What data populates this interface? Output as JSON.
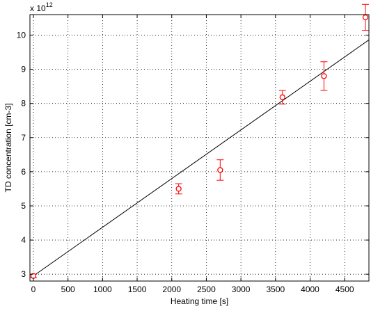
{
  "chart_data": {
    "type": "scatter",
    "title": "",
    "xlabel": "Heating time [s]",
    "ylabel": "TD concentration [cm-3]",
    "y_exponent_base": "x 10",
    "y_exponent_power": "12",
    "xlim": [
      -50,
      4850
    ],
    "ylim": [
      2.8,
      10.6
    ],
    "x_ticks": [
      0,
      500,
      1000,
      1500,
      2000,
      2500,
      3000,
      3500,
      4000,
      4500
    ],
    "y_ticks": [
      3,
      4,
      5,
      6,
      7,
      8,
      9,
      10
    ],
    "grid": true,
    "series": [
      {
        "type": "scatter-errorbar",
        "color": "#ff0000",
        "points": [
          {
            "x": 0,
            "y": 2.95,
            "err": 0.05
          },
          {
            "x": 2100,
            "y": 5.5,
            "err": 0.15
          },
          {
            "x": 2700,
            "y": 6.05,
            "err": 0.3
          },
          {
            "x": 3600,
            "y": 8.18,
            "err": 0.2
          },
          {
            "x": 4200,
            "y": 8.8,
            "err": 0.42
          },
          {
            "x": 4800,
            "y": 10.52,
            "err": 0.38
          }
        ]
      },
      {
        "type": "line",
        "color": "#000000",
        "x": [
          0,
          4850
        ],
        "y": [
          2.95,
          9.86
        ]
      }
    ]
  }
}
